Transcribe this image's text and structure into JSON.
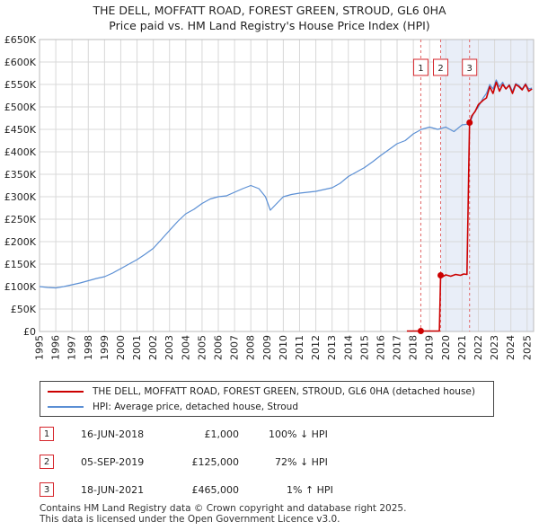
{
  "chart_data": {
    "type": "line",
    "title": "THE DELL, MOFFATT ROAD, FOREST GREEN, STROUD, GL6 0HA",
    "subtitle": "Price paid vs. HM Land Registry's House Price Index (HPI)",
    "xlim": [
      1995,
      2025.4
    ],
    "ylim": [
      0,
      650000
    ],
    "y_ticks": [
      0,
      50000,
      100000,
      150000,
      200000,
      250000,
      300000,
      350000,
      400000,
      450000,
      500000,
      550000,
      600000,
      650000
    ],
    "y_tick_labels": [
      "£0",
      "£50K",
      "£100K",
      "£150K",
      "£200K",
      "£250K",
      "£300K",
      "£350K",
      "£400K",
      "£450K",
      "£500K",
      "£550K",
      "£600K",
      "£650K"
    ],
    "x_ticks": [
      1995,
      1996,
      1997,
      1998,
      1999,
      2000,
      2001,
      2002,
      2003,
      2004,
      2005,
      2006,
      2007,
      2008,
      2009,
      2010,
      2011,
      2012,
      2013,
      2014,
      2015,
      2016,
      2017,
      2018,
      2019,
      2020,
      2021,
      2022,
      2023,
      2024,
      2025
    ],
    "x_tick_labels": [
      "1995",
      "1996",
      "1997",
      "1998",
      "1999",
      "2000",
      "2001",
      "2002",
      "2003",
      "2004",
      "2005",
      "2006",
      "2007",
      "2008",
      "2009",
      "2010",
      "2011",
      "2012",
      "2013",
      "2014",
      "2015",
      "2016",
      "2017",
      "2018",
      "2019",
      "2020",
      "2021",
      "2022",
      "2023",
      "2024",
      "2025"
    ],
    "grid": true,
    "series": [
      {
        "name": "THE DELL, MOFFATT ROAD, FOREST GREEN, STROUD, GL6 0HA (detached house)",
        "color": "#cc0000",
        "x": [
          2017.6,
          2018.46,
          2019.6,
          2019.68,
          2019.8,
          2020.0,
          2020.3,
          2020.6,
          2020.9,
          2021.1,
          2021.3,
          2021.46,
          2021.6,
          2021.8,
          2022.0,
          2022.3,
          2022.5,
          2022.7,
          2022.9,
          2023.1,
          2023.3,
          2023.5,
          2023.7,
          2023.9,
          2024.1,
          2024.3,
          2024.5,
          2024.7,
          2024.9,
          2025.1,
          2025.3
        ],
        "y": [
          1000,
          1000,
          1000,
          125000,
          122000,
          126000,
          123000,
          127000,
          125000,
          128000,
          127000,
          465000,
          480000,
          490000,
          505000,
          515000,
          520000,
          545000,
          530000,
          555000,
          535000,
          550000,
          540000,
          548000,
          530000,
          550000,
          545000,
          538000,
          550000,
          535000,
          540000
        ]
      },
      {
        "name": "HPI: Average price, detached house, Stroud",
        "color": "#5b8fd4",
        "x": [
          1995.0,
          1995.5,
          1996.0,
          1996.5,
          1997.0,
          1997.5,
          1998.0,
          1998.5,
          1999.0,
          1999.5,
          2000.0,
          2000.5,
          2001.0,
          2001.5,
          2002.0,
          2002.5,
          2003.0,
          2003.5,
          2004.0,
          2004.5,
          2005.0,
          2005.5,
          2006.0,
          2006.5,
          2007.0,
          2007.5,
          2008.0,
          2008.5,
          2008.9,
          2009.2,
          2009.6,
          2010.0,
          2010.5,
          2011.0,
          2011.5,
          2012.0,
          2012.5,
          2013.0,
          2013.5,
          2014.0,
          2014.5,
          2015.0,
          2015.5,
          2016.0,
          2016.5,
          2017.0,
          2017.5,
          2018.0,
          2018.5,
          2019.0,
          2019.5,
          2020.0,
          2020.5,
          2021.0,
          2021.46,
          2021.7,
          2022.0,
          2022.3,
          2022.5,
          2022.7,
          2022.9,
          2023.1,
          2023.3,
          2023.5,
          2023.7,
          2023.9,
          2024.1,
          2024.3,
          2024.5,
          2024.7,
          2024.9,
          2025.1,
          2025.3
        ],
        "y": [
          100000,
          98000,
          97000,
          100000,
          104000,
          108000,
          113000,
          118000,
          122000,
          130000,
          140000,
          150000,
          160000,
          172000,
          185000,
          205000,
          225000,
          245000,
          262000,
          272000,
          285000,
          295000,
          300000,
          302000,
          310000,
          318000,
          325000,
          318000,
          300000,
          270000,
          285000,
          300000,
          305000,
          308000,
          310000,
          312000,
          316000,
          320000,
          330000,
          345000,
          355000,
          365000,
          378000,
          392000,
          405000,
          418000,
          425000,
          440000,
          450000,
          455000,
          450000,
          455000,
          445000,
          460000,
          462000,
          485000,
          500000,
          520000,
          530000,
          550000,
          540000,
          560000,
          545000,
          555000,
          540000,
          550000,
          535000,
          552000,
          548000,
          540000,
          552000,
          540000,
          542000
        ]
      }
    ],
    "sales": [
      {
        "label": "1",
        "x": 2018.46,
        "y": 1000
      },
      {
        "label": "2",
        "x": 2019.68,
        "y": 125000
      },
      {
        "label": "3",
        "x": 2021.46,
        "y": 465000
      }
    ],
    "shade_from": 2019.68,
    "shade_to": 2025.4
  },
  "legend": {
    "entries": [
      {
        "label": "THE DELL, MOFFATT ROAD, FOREST GREEN, STROUD, GL6 0HA (detached house)",
        "color": "#cc0000"
      },
      {
        "label": "HPI: Average price, detached house, Stroud",
        "color": "#5b8fd4"
      }
    ]
  },
  "transactions": [
    {
      "num": "1",
      "date": "16-JUN-2018",
      "price": "£1,000",
      "hpi": "100% ↓ HPI"
    },
    {
      "num": "2",
      "date": "05-SEP-2019",
      "price": "£125,000",
      "hpi": "72% ↓ HPI"
    },
    {
      "num": "3",
      "date": "18-JUN-2021",
      "price": "£465,000",
      "hpi": "1% ↑ HPI"
    }
  ],
  "footer": {
    "line1": "Contains HM Land Registry data © Crown copyright and database right 2025.",
    "line2": "This data is licensed under the Open Government Licence v3.0."
  }
}
